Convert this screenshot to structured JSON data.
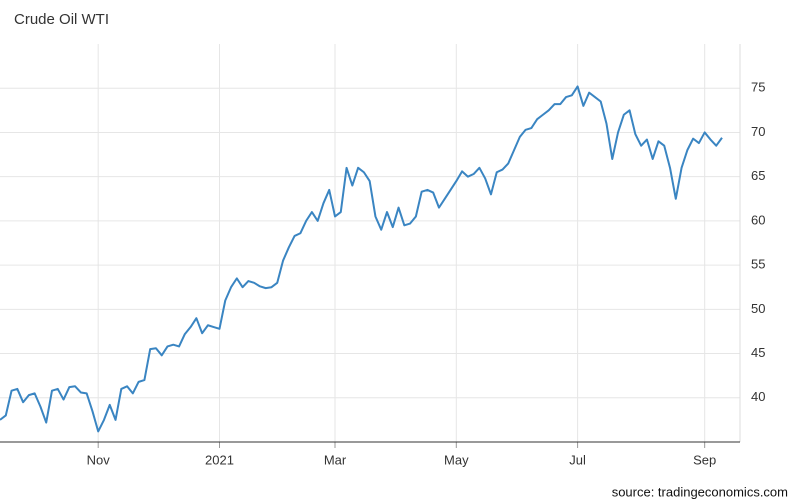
{
  "chart_data": {
    "type": "line",
    "title": "Crude Oil WTI",
    "source": "source: tradingeconomics.com",
    "categories": [
      null,
      null,
      null,
      null,
      null,
      null,
      null,
      null,
      null,
      null,
      null,
      null,
      null,
      null,
      null,
      null,
      null,
      "Nov",
      null,
      null,
      null,
      null,
      null,
      null,
      null,
      null,
      null,
      null,
      null,
      null,
      null,
      null,
      null,
      null,
      null,
      null,
      null,
      null,
      "2021",
      null,
      null,
      null,
      null,
      null,
      null,
      null,
      null,
      null,
      null,
      null,
      null,
      null,
      null,
      null,
      null,
      null,
      null,
      null,
      "Mar",
      null,
      null,
      null,
      null,
      null,
      null,
      null,
      null,
      null,
      null,
      null,
      null,
      null,
      null,
      null,
      null,
      null,
      null,
      null,
      null,
      "May",
      null,
      null,
      null,
      null,
      null,
      null,
      null,
      null,
      null,
      null,
      null,
      null,
      null,
      null,
      null,
      null,
      null,
      null,
      null,
      null,
      "Jul",
      null,
      null,
      null,
      null,
      null,
      null,
      null,
      null,
      null,
      null,
      null,
      null,
      null,
      null,
      null,
      null,
      null,
      null,
      null,
      null,
      null,
      "Sep",
      null,
      null,
      null
    ],
    "series": [
      {
        "name": "Crude Oil WTI",
        "color": "#3a85c2",
        "values": [
          37.5,
          38,
          40.8,
          41,
          39.5,
          40.3,
          40.5,
          39,
          37.2,
          40.8,
          41,
          39.8,
          41.2,
          41.3,
          40.6,
          40.5,
          38.5,
          36.2,
          37.5,
          39.2,
          37.5,
          41,
          41.3,
          40.5,
          41.8,
          42,
          45.5,
          45.6,
          44.8,
          45.8,
          46,
          45.8,
          47.2,
          48,
          49,
          47.3,
          48.2,
          48,
          47.8,
          51,
          52.5,
          53.5,
          52.5,
          53.2,
          53,
          52.6,
          52.4,
          52.5,
          53,
          55.5,
          57,
          58.3,
          58.6,
          60,
          61,
          60,
          62,
          63.5,
          60.5,
          61,
          66,
          64,
          66,
          65.5,
          64.5,
          60.5,
          59,
          61,
          59.3,
          61.5,
          59.5,
          59.7,
          60.5,
          63.3,
          63.5,
          63.2,
          61.5,
          62.5,
          63.5,
          64.5,
          65.6,
          65,
          65.3,
          66,
          64.8,
          63,
          65.5,
          65.8,
          66.5,
          68,
          69.5,
          70.3,
          70.5,
          71.5,
          72,
          72.5,
          73.2,
          73.2,
          74,
          74.2,
          75.2,
          73,
          74.5,
          74,
          73.5,
          71,
          67,
          70,
          72,
          72.5,
          69.8,
          68.5,
          69.2,
          67,
          69,
          68.5,
          66,
          62.5,
          66,
          68,
          69.3,
          68.8,
          70,
          69.2,
          68.5,
          69.4
        ]
      }
    ],
    "ylim": [
      35,
      80
    ],
    "yticks": [
      40,
      45,
      50,
      55,
      60,
      65,
      70,
      75
    ],
    "grid": true
  }
}
